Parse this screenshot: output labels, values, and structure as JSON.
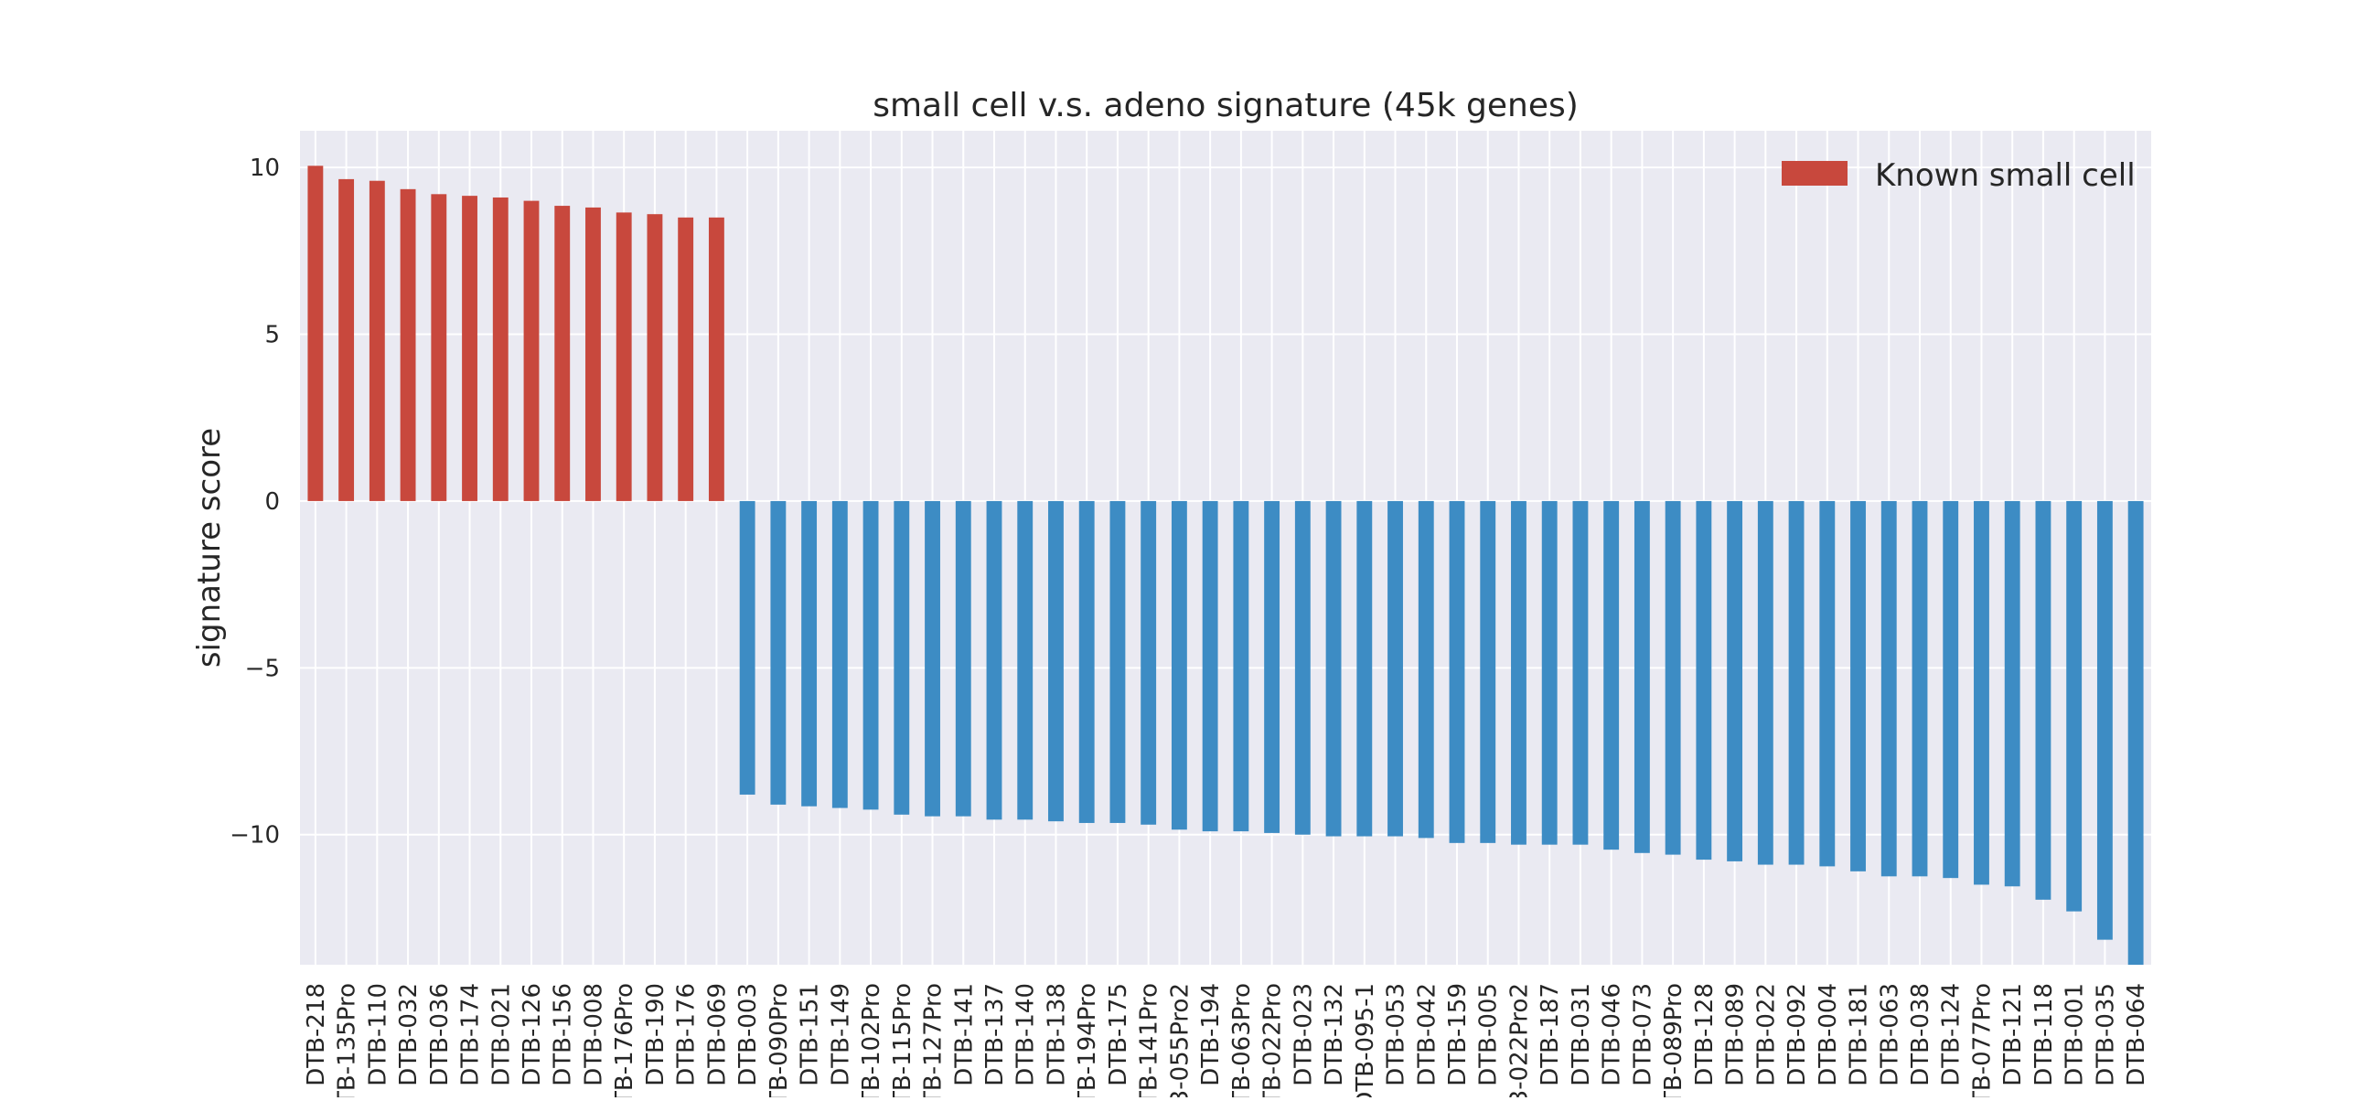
{
  "chart_data": {
    "type": "bar",
    "title": "small cell v.s. adeno signature (45k genes)",
    "xlabel": "",
    "ylabel": "signature score",
    "ylim": [
      -13.9,
      11.1
    ],
    "yticks": [
      10,
      5,
      0,
      -5,
      -10
    ],
    "ytick_labels": [
      "10",
      "5",
      "0",
      "−5",
      "−10"
    ],
    "grid": true,
    "legend_position": "top-right",
    "legend": [
      {
        "label": "Known small cell",
        "color": "#c8483d"
      }
    ],
    "colors": {
      "known_small_cell": "#c8483d",
      "other": "#3d8cc4",
      "plot_background": "#eaeaf2",
      "grid": "#ffffff"
    },
    "categories": [
      "DTB-218",
      "TB-135Pro",
      "DTB-110",
      "DTB-032",
      "DTB-036",
      "DTB-174",
      "DTB-021",
      "DTB-126",
      "DTB-156",
      "DTB-008",
      "TB-176Pro",
      "DTB-190",
      "DTB-176",
      "DTB-069",
      "DTB-003",
      "TB-090Pro",
      "DTB-151",
      "DTB-149",
      "TB-102Pro",
      "TB-115Pro",
      "TB-127Pro",
      "DTB-141",
      "DTB-137",
      "DTB-140",
      "DTB-138",
      "TB-194Pro",
      "DTB-175",
      "TB-141Pro",
      "3-055Pro2",
      "DTB-194",
      "TB-063Pro",
      "TB-022Pro",
      "DTB-023",
      "DTB-132",
      "DTB-095-1",
      "DTB-053",
      "DTB-042",
      "DTB-159",
      "DTB-005",
      "3-022Pro2",
      "DTB-187",
      "DTB-031",
      "DTB-046",
      "DTB-073",
      "TB-089Pro",
      "DTB-128",
      "DTB-089",
      "DTB-022",
      "DTB-092",
      "DTB-004",
      "DTB-181",
      "DTB-063",
      "DTB-038",
      "DTB-124",
      "TB-077Pro",
      "DTB-121",
      "DTB-118",
      "DTB-001",
      "DTB-035",
      "DTB-064"
    ],
    "values": [
      10.05,
      9.65,
      9.6,
      9.35,
      9.2,
      9.15,
      9.1,
      9.0,
      8.85,
      8.8,
      8.65,
      8.6,
      8.5,
      8.5,
      -8.8,
      -9.1,
      -9.15,
      -9.2,
      -9.25,
      -9.4,
      -9.45,
      -9.45,
      -9.55,
      -9.55,
      -9.6,
      -9.65,
      -9.65,
      -9.7,
      -9.85,
      -9.9,
      -9.9,
      -9.95,
      -10.0,
      -10.05,
      -10.05,
      -10.05,
      -10.1,
      -10.25,
      -10.25,
      -10.3,
      -10.3,
      -10.3,
      -10.45,
      -10.55,
      -10.6,
      -10.75,
      -10.8,
      -10.9,
      -10.9,
      -10.95,
      -11.1,
      -11.25,
      -11.25,
      -11.3,
      -11.5,
      -11.55,
      -11.95,
      -12.3,
      -13.15,
      -13.9
    ],
    "series_membership": [
      "Known small cell",
      "Known small cell",
      "Known small cell",
      "Known small cell",
      "Known small cell",
      "Known small cell",
      "Known small cell",
      "Known small cell",
      "Known small cell",
      "Known small cell",
      "Known small cell",
      "Known small cell",
      "Known small cell",
      "Known small cell",
      "",
      "",
      "",
      "",
      "",
      "",
      "",
      "",
      "",
      "",
      "",
      "",
      "",
      "",
      "",
      "",
      "",
      "",
      "",
      "",
      "",
      "",
      "",
      "",
      "",
      "",
      "",
      "",
      "",
      "",
      "",
      "",
      "",
      "",
      "",
      "",
      "",
      "",
      "",
      "",
      "",
      "",
      "",
      "",
      "",
      ""
    ]
  }
}
